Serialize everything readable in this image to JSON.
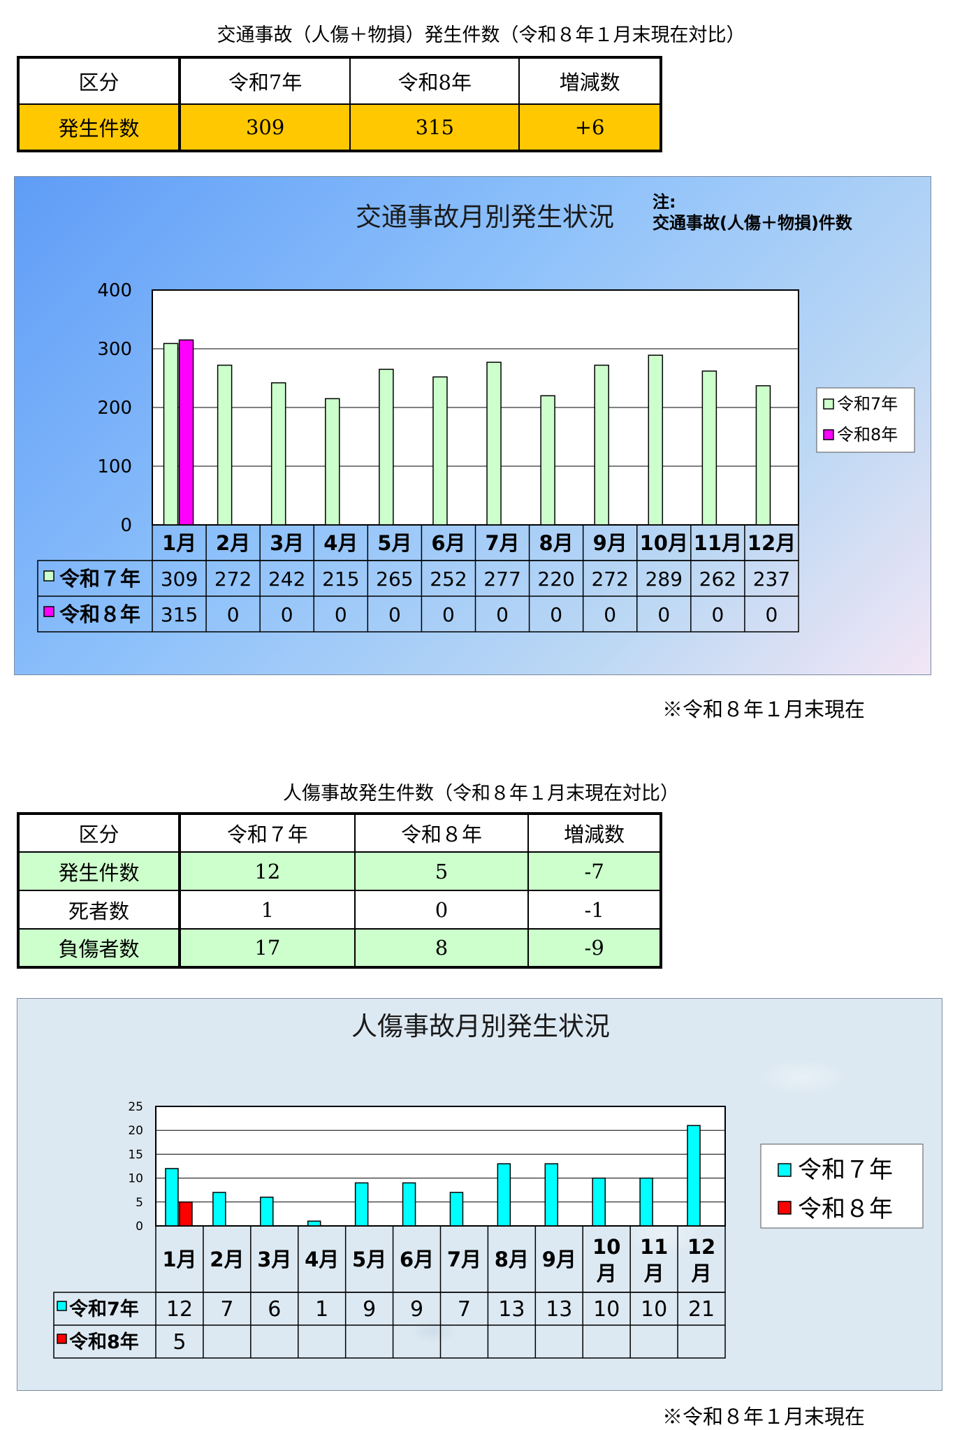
{
  "section1": {
    "table_title": "交通事故（人傷＋物損）発生件数（令和８年１月末現在対比）",
    "headers": [
      "区分",
      "令和7年",
      "令和8年",
      "増減数"
    ],
    "row": [
      "発生件数",
      "309",
      "315",
      "+6"
    ],
    "colors": {
      "header_bg": "#ffffff",
      "row_bg": "#ffc800"
    }
  },
  "chart1": {
    "note_label": "注:",
    "note_text": "交通事故(人傷＋物損)件数",
    "footnote": "※令和８年１月末現在",
    "colors": {
      "series1": "#ccffcc",
      "series2": "#ff00ff"
    },
    "series_labels": [
      "令和7年",
      "令和8年"
    ],
    "table_labels": [
      "令和７年",
      "令和８年"
    ],
    "table_values": [
      [
        "309",
        "272",
        "242",
        "215",
        "265",
        "252",
        "277",
        "220",
        "272",
        "289",
        "262",
        "237"
      ],
      [
        "315",
        "0",
        "0",
        "0",
        "0",
        "0",
        "0",
        "0",
        "0",
        "0",
        "0",
        "0"
      ]
    ]
  },
  "section2": {
    "table_title": "人傷事故発生件数（令和８年１月末現在対比）",
    "headers": [
      "区分",
      "令和７年",
      "令和８年",
      "増減数"
    ],
    "rows": [
      [
        "発生件数",
        "12",
        "5",
        "-7"
      ],
      [
        "死者数",
        "1",
        "0",
        "-1"
      ],
      [
        "負傷者数",
        "17",
        "8",
        "-9"
      ]
    ],
    "colors": {
      "shaded_bg": "#ccffcc",
      "plain_bg": "#ffffff"
    }
  },
  "chart2": {
    "footnote": "※令和８年１月末現在",
    "colors": {
      "series1": "#00ffff",
      "series2": "#ff0000"
    },
    "series_labels": [
      "令和７年",
      "令和８年"
    ],
    "table_labels": [
      "令和7年",
      "令和8年"
    ],
    "table_values": [
      [
        "12",
        "7",
        "6",
        "1",
        "9",
        "9",
        "7",
        "13",
        "13",
        "10",
        "10",
        "21"
      ],
      [
        "5",
        "",
        "",
        "",
        "",
        "",
        "",
        "",
        "",
        "",
        "",
        ""
      ]
    ]
  },
  "chart_data": [
    {
      "type": "bar",
      "title": "交通事故月別発生状況",
      "categories": [
        "1月",
        "2月",
        "3月",
        "4月",
        "5月",
        "6月",
        "7月",
        "8月",
        "9月",
        "10月",
        "11月",
        "12月"
      ],
      "series": [
        {
          "name": "令和7年",
          "values": [
            309,
            272,
            242,
            215,
            265,
            252,
            277,
            220,
            272,
            289,
            262,
            237
          ]
        },
        {
          "name": "令和8年",
          "values": [
            315,
            0,
            0,
            0,
            0,
            0,
            0,
            0,
            0,
            0,
            0,
            0
          ]
        }
      ],
      "ylim": [
        0,
        400
      ],
      "yticks": [
        0,
        100,
        200,
        300,
        400
      ],
      "grid": true,
      "legend": "right"
    },
    {
      "type": "bar",
      "title": "人傷事故月別発生状況",
      "categories": [
        "1月",
        "2月",
        "3月",
        "4月",
        "5月",
        "6月",
        "7月",
        "8月",
        "9月",
        "10月",
        "11月",
        "12月"
      ],
      "series": [
        {
          "name": "令和７年",
          "values": [
            12,
            7,
            6,
            1,
            9,
            9,
            7,
            13,
            13,
            10,
            10,
            21
          ]
        },
        {
          "name": "令和８年",
          "values": [
            5,
            null,
            null,
            null,
            null,
            null,
            null,
            null,
            null,
            null,
            null,
            null
          ]
        }
      ],
      "ylim": [
        0,
        25
      ],
      "yticks": [
        0,
        5,
        10,
        15,
        20,
        25
      ],
      "grid": true,
      "legend": "right"
    }
  ]
}
